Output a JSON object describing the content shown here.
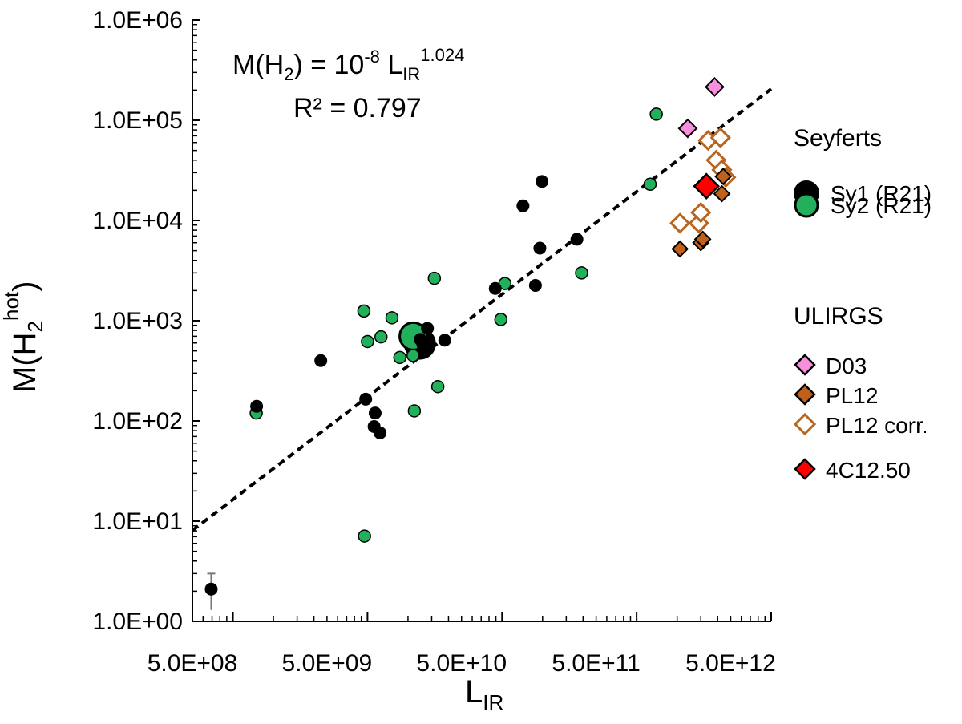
{
  "chart_data": {
    "type": "scatter",
    "xscale": "log",
    "yscale": "log",
    "xlim": [
      500000000.0,
      10000000000000.0
    ],
    "ylim": [
      1,
      1000000
    ],
    "xlabel": {
      "main": "L",
      "sub": "IR"
    },
    "ylabel": {
      "pre": "M(H",
      "sub": "2",
      "sup": "hot",
      "post": ")"
    },
    "xticks": [
      {
        "value": 500000000.0,
        "label": "5.0E+08"
      },
      {
        "value": 5000000000.0,
        "label": "5.0E+09"
      },
      {
        "value": 50000000000.0,
        "label": "5.0E+10"
      },
      {
        "value": 500000000000.0,
        "label": "5.0E+11"
      },
      {
        "value": 5000000000000.0,
        "label": "5.0E+12"
      }
    ],
    "yticks": [
      {
        "value": 1,
        "label": "1.0E+00"
      },
      {
        "value": 10,
        "label": "1.0E+01"
      },
      {
        "value": 100,
        "label": "1.0E+02"
      },
      {
        "value": 1000,
        "label": "1.0E+03"
      },
      {
        "value": 10000,
        "label": "1.0E+04"
      },
      {
        "value": 100000,
        "label": "1.0E+05"
      },
      {
        "value": 1000000,
        "label": "1.0E+06"
      }
    ],
    "annotation": {
      "line1_pre": "M(H",
      "line1_sub": "2",
      "line1_mid": ") = 10",
      "line1_exp": "-8",
      "line1_L": " L",
      "line1_Lsub": "IR",
      "line1_Lexp": "1.024",
      "line2": "R² = 0.797"
    },
    "fit": {
      "coef": 1e-08,
      "exponent": 1.024,
      "x_range": [
        500000000.0,
        10000000000000.0
      ]
    },
    "legend": {
      "group1_title": "Seyferts",
      "group2_title": "ULIRGS",
      "entries": [
        {
          "key": "sy1",
          "label": "Sy1 (R21)"
        },
        {
          "key": "sy2",
          "label": "Sy2 (R21)"
        },
        {
          "key": "d03",
          "label": "D03"
        },
        {
          "key": "pl12",
          "label": "PL12"
        },
        {
          "key": "pl12corr",
          "label": "PL12 corr."
        },
        {
          "key": "c4",
          "label": "4C12.50"
        }
      ]
    },
    "colors": {
      "sy1": "#000000",
      "sy2": "#22b05a",
      "d03": "#f78fdc",
      "pl12": "#c0601a",
      "pl12corr": "#b9651e",
      "c4": "#ff0000",
      "errorbar": "#777777"
    },
    "series": [
      {
        "name": "Sy1 (R21)",
        "key": "sy1",
        "points": [
          {
            "x": 690000000.0,
            "y": 2.1,
            "err": [
              0.8,
              0.9
            ]
          },
          {
            "x": 1500000000.0,
            "y": 140
          },
          {
            "x": 4500000000.0,
            "y": 400
          },
          {
            "x": 9700000000.0,
            "y": 165
          },
          {
            "x": 11400000000.0,
            "y": 120
          },
          {
            "x": 11200000000.0,
            "y": 88
          },
          {
            "x": 12400000000.0,
            "y": 76
          },
          {
            "x": 24700000000.0,
            "y": 650
          },
          {
            "x": 25800000000.0,
            "y": 580
          },
          {
            "x": 27900000000.0,
            "y": 840
          },
          {
            "x": 37500000000.0,
            "y": 640
          },
          {
            "x": 89000000000.0,
            "y": 2100
          },
          {
            "x": 143000000000.0,
            "y": 14000
          },
          {
            "x": 177000000000.0,
            "y": 2250
          },
          {
            "x": 191000000000.0,
            "y": 5300
          },
          {
            "x": 198000000000.0,
            "y": 24500
          },
          {
            "x": 360000000000.0,
            "y": 6500
          }
        ]
      },
      {
        "name": "Sy2 (R21)",
        "key": "sy2",
        "points": [
          {
            "x": 1490000000.0,
            "y": 120
          },
          {
            "x": 9500000000.0,
            "y": 7.1
          },
          {
            "x": 9400000000.0,
            "y": 1250
          },
          {
            "x": 10000000000.0,
            "y": 620
          },
          {
            "x": 12600000000.0,
            "y": 690
          },
          {
            "x": 15200000000.0,
            "y": 1070
          },
          {
            "x": 17400000000.0,
            "y": 430
          },
          {
            "x": 21800000000.0,
            "y": 450
          },
          {
            "x": 22300000000.0,
            "y": 126
          },
          {
            "x": 31400000000.0,
            "y": 2650
          },
          {
            "x": 33300000000.0,
            "y": 220
          },
          {
            "x": 98000000000.0,
            "y": 1030
          },
          {
            "x": 105000000000.0,
            "y": 2350
          },
          {
            "x": 390000000000.0,
            "y": 3000
          },
          {
            "x": 1260000000000.0,
            "y": 23000
          },
          {
            "x": 1400000000000.0,
            "y": 115000
          }
        ]
      },
      {
        "name": "D03",
        "key": "d03",
        "points": [
          {
            "x": 2400000000000.0,
            "y": 83000
          },
          {
            "x": 3800000000000.0,
            "y": 215000
          }
        ]
      },
      {
        "name": "PL12",
        "key": "pl12",
        "points": [
          {
            "x": 2100000000000.0,
            "y": 5200
          },
          {
            "x": 3000000000000.0,
            "y": 6000
          },
          {
            "x": 3100000000000.0,
            "y": 6500
          },
          {
            "x": 3400000000000.0,
            "y": 21000
          },
          {
            "x": 4300000000000.0,
            "y": 18500
          },
          {
            "x": 4400000000000.0,
            "y": 27500
          },
          {
            "x": 3300000000000.0,
            "y": 22000
          }
        ]
      },
      {
        "name": "PL12 corr.",
        "key": "pl12corr",
        "points": [
          {
            "x": 2100000000000.0,
            "y": 9400
          },
          {
            "x": 2900000000000.0,
            "y": 9400
          },
          {
            "x": 3000000000000.0,
            "y": 12000
          },
          {
            "x": 3400000000000.0,
            "y": 63000
          },
          {
            "x": 3900000000000.0,
            "y": 40000
          },
          {
            "x": 4200000000000.0,
            "y": 67000
          },
          {
            "x": 4300000000000.0,
            "y": 32000
          },
          {
            "x": 4600000000000.0,
            "y": 27000
          }
        ]
      },
      {
        "name": "4C12.50",
        "key": "c4",
        "points": [
          {
            "x": 3300000000000.0,
            "y": 22000
          }
        ]
      }
    ],
    "large_markers": [
      {
        "key": "sy1",
        "x": 24500000000.0,
        "y": 590
      },
      {
        "key": "sy2",
        "x": 21900000000.0,
        "y": 700
      }
    ]
  }
}
